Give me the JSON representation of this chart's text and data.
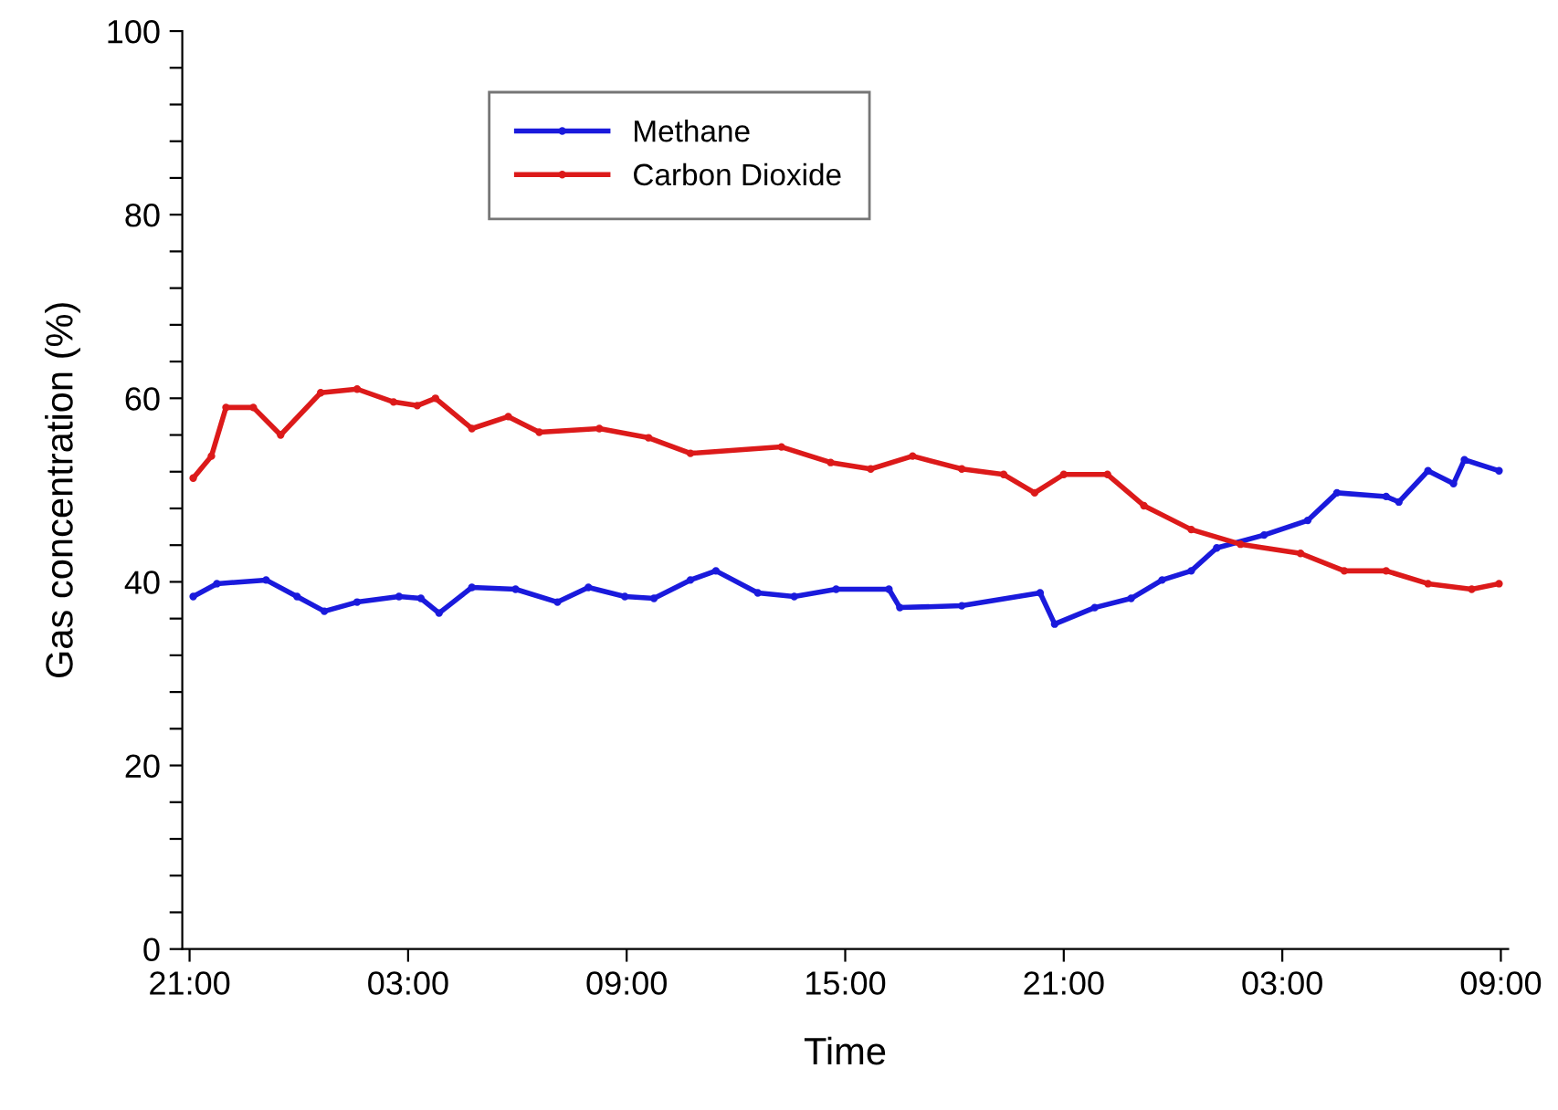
{
  "chart_data": {
    "type": "line",
    "xlabel": "Time",
    "ylabel": "Gas concentration (%)",
    "xlim": [
      "2000-01-01T20:48",
      "2000-01-03T09:12"
    ],
    "xticks": [
      {
        "value": "2000-01-01T21:00",
        "label": "21:00"
      },
      {
        "value": "2000-01-02T03:00",
        "label": "03:00"
      },
      {
        "value": "2000-01-02T09:00",
        "label": "09:00"
      },
      {
        "value": "2000-01-02T15:00",
        "label": "15:00"
      },
      {
        "value": "2000-01-02T21:00",
        "label": "21:00"
      },
      {
        "value": "2000-01-03T03:00",
        "label": "03:00"
      },
      {
        "value": "2000-01-03T09:00",
        "label": "09:00"
      }
    ],
    "ylim": [
      0,
      100
    ],
    "yticks": [
      0,
      {
        "value": 4,
        "label": null
      },
      {
        "value": 8,
        "label": null
      },
      {
        "value": 12,
        "label": null
      },
      {
        "value": 16,
        "label": null
      },
      20,
      {
        "value": 24,
        "label": null
      },
      {
        "value": 28,
        "label": null
      },
      {
        "value": 32,
        "label": null
      },
      {
        "value": 36,
        "label": null
      },
      40,
      {
        "value": 44,
        "label": null
      },
      {
        "value": 48,
        "label": null
      },
      {
        "value": 52,
        "label": null
      },
      {
        "value": 56,
        "label": null
      },
      60,
      {
        "value": 64,
        "label": null
      },
      {
        "value": 68,
        "label": null
      },
      {
        "value": 72,
        "label": null
      },
      {
        "value": 76,
        "label": null
      },
      80,
      {
        "value": 84,
        "label": null
      },
      {
        "value": 88,
        "label": null
      },
      {
        "value": 92,
        "label": null
      },
      {
        "value": 96,
        "label": null
      },
      100
    ],
    "grid": false,
    "legend": "top",
    "marker": "circle",
    "line_style": "solid",
    "series": [
      {
        "name": "Methane",
        "color": "#1a1adc",
        "x": [
          "2000-01-01T21:06",
          "2000-01-01T21:45",
          "2000-01-01T23:06",
          "2000-01-01T23:57",
          "2000-01-02T00:42",
          "2000-01-02T01:36",
          "2000-01-02T02:45",
          "2000-01-02T03:21",
          "2000-01-02T03:51",
          "2000-01-02T04:45",
          "2000-01-02T05:57",
          "2000-01-02T07:06",
          "2000-01-02T07:57",
          "2000-01-02T08:57",
          "2000-01-02T09:45",
          "2000-01-02T10:45",
          "2000-01-02T11:27",
          "2000-01-02T12:36",
          "2000-01-02T13:36",
          "2000-01-02T14:45",
          "2000-01-02T16:12",
          "2000-01-02T16:30",
          "2000-01-02T18:12",
          "2000-01-02T20:21",
          "2000-01-02T20:45",
          "2000-01-02T21:51",
          "2000-01-02T22:51",
          "2000-01-02T23:42",
          "2000-01-03T00:30",
          "2000-01-03T01:12",
          "2000-01-03T02:30",
          "2000-01-03T03:42",
          "2000-01-03T04:30",
          "2000-01-03T05:51",
          "2000-01-03T06:12",
          "2000-01-03T07:00",
          "2000-01-03T07:42",
          "2000-01-03T08:00",
          "2000-01-03T08:57"
        ],
        "values": [
          38.4,
          39.8,
          40.2,
          38.4,
          36.8,
          37.8,
          38.4,
          38.2,
          36.6,
          39.4,
          39.2,
          37.8,
          39.4,
          38.4,
          38.2,
          40.2,
          41.2,
          38.8,
          38.4,
          39.2,
          39.2,
          37.2,
          37.4,
          38.8,
          35.4,
          37.2,
          38.2,
          40.2,
          41.2,
          43.7,
          45.1,
          46.7,
          49.7,
          49.3,
          48.7,
          52.1,
          50.7,
          53.3,
          52.1
        ]
      },
      {
        "name": "Carbon Dioxide",
        "color": "#dc1a1a",
        "x": [
          "2000-01-01T21:06",
          "2000-01-01T21:36",
          "2000-01-01T22:00",
          "2000-01-01T22:45",
          "2000-01-01T23:30",
          "2000-01-02T00:36",
          "2000-01-02T01:36",
          "2000-01-02T02:36",
          "2000-01-02T03:15",
          "2000-01-02T03:45",
          "2000-01-02T04:45",
          "2000-01-02T05:45",
          "2000-01-02T06:36",
          "2000-01-02T08:15",
          "2000-01-02T09:36",
          "2000-01-02T10:45",
          "2000-01-02T13:15",
          "2000-01-02T14:36",
          "2000-01-02T15:42",
          "2000-01-02T16:51",
          "2000-01-02T18:12",
          "2000-01-02T19:21",
          "2000-01-02T20:12",
          "2000-01-02T21:00",
          "2000-01-02T22:12",
          "2000-01-02T23:12",
          "2000-01-03T00:30",
          "2000-01-03T01:51",
          "2000-01-03T03:30",
          "2000-01-03T04:42",
          "2000-01-03T05:51",
          "2000-01-03T07:00",
          "2000-01-03T08:12",
          "2000-01-03T08:57"
        ],
        "values": [
          51.3,
          53.7,
          59,
          59,
          56,
          60.6,
          61,
          59.6,
          59.2,
          60,
          56.7,
          58,
          56.3,
          56.7,
          55.7,
          54,
          54.7,
          53,
          52.3,
          53.7,
          52.3,
          51.7,
          49.7,
          51.7,
          51.7,
          48.3,
          45.7,
          44.1,
          43.1,
          41.2,
          41.2,
          39.8,
          39.2,
          39.8
        ]
      }
    ]
  }
}
